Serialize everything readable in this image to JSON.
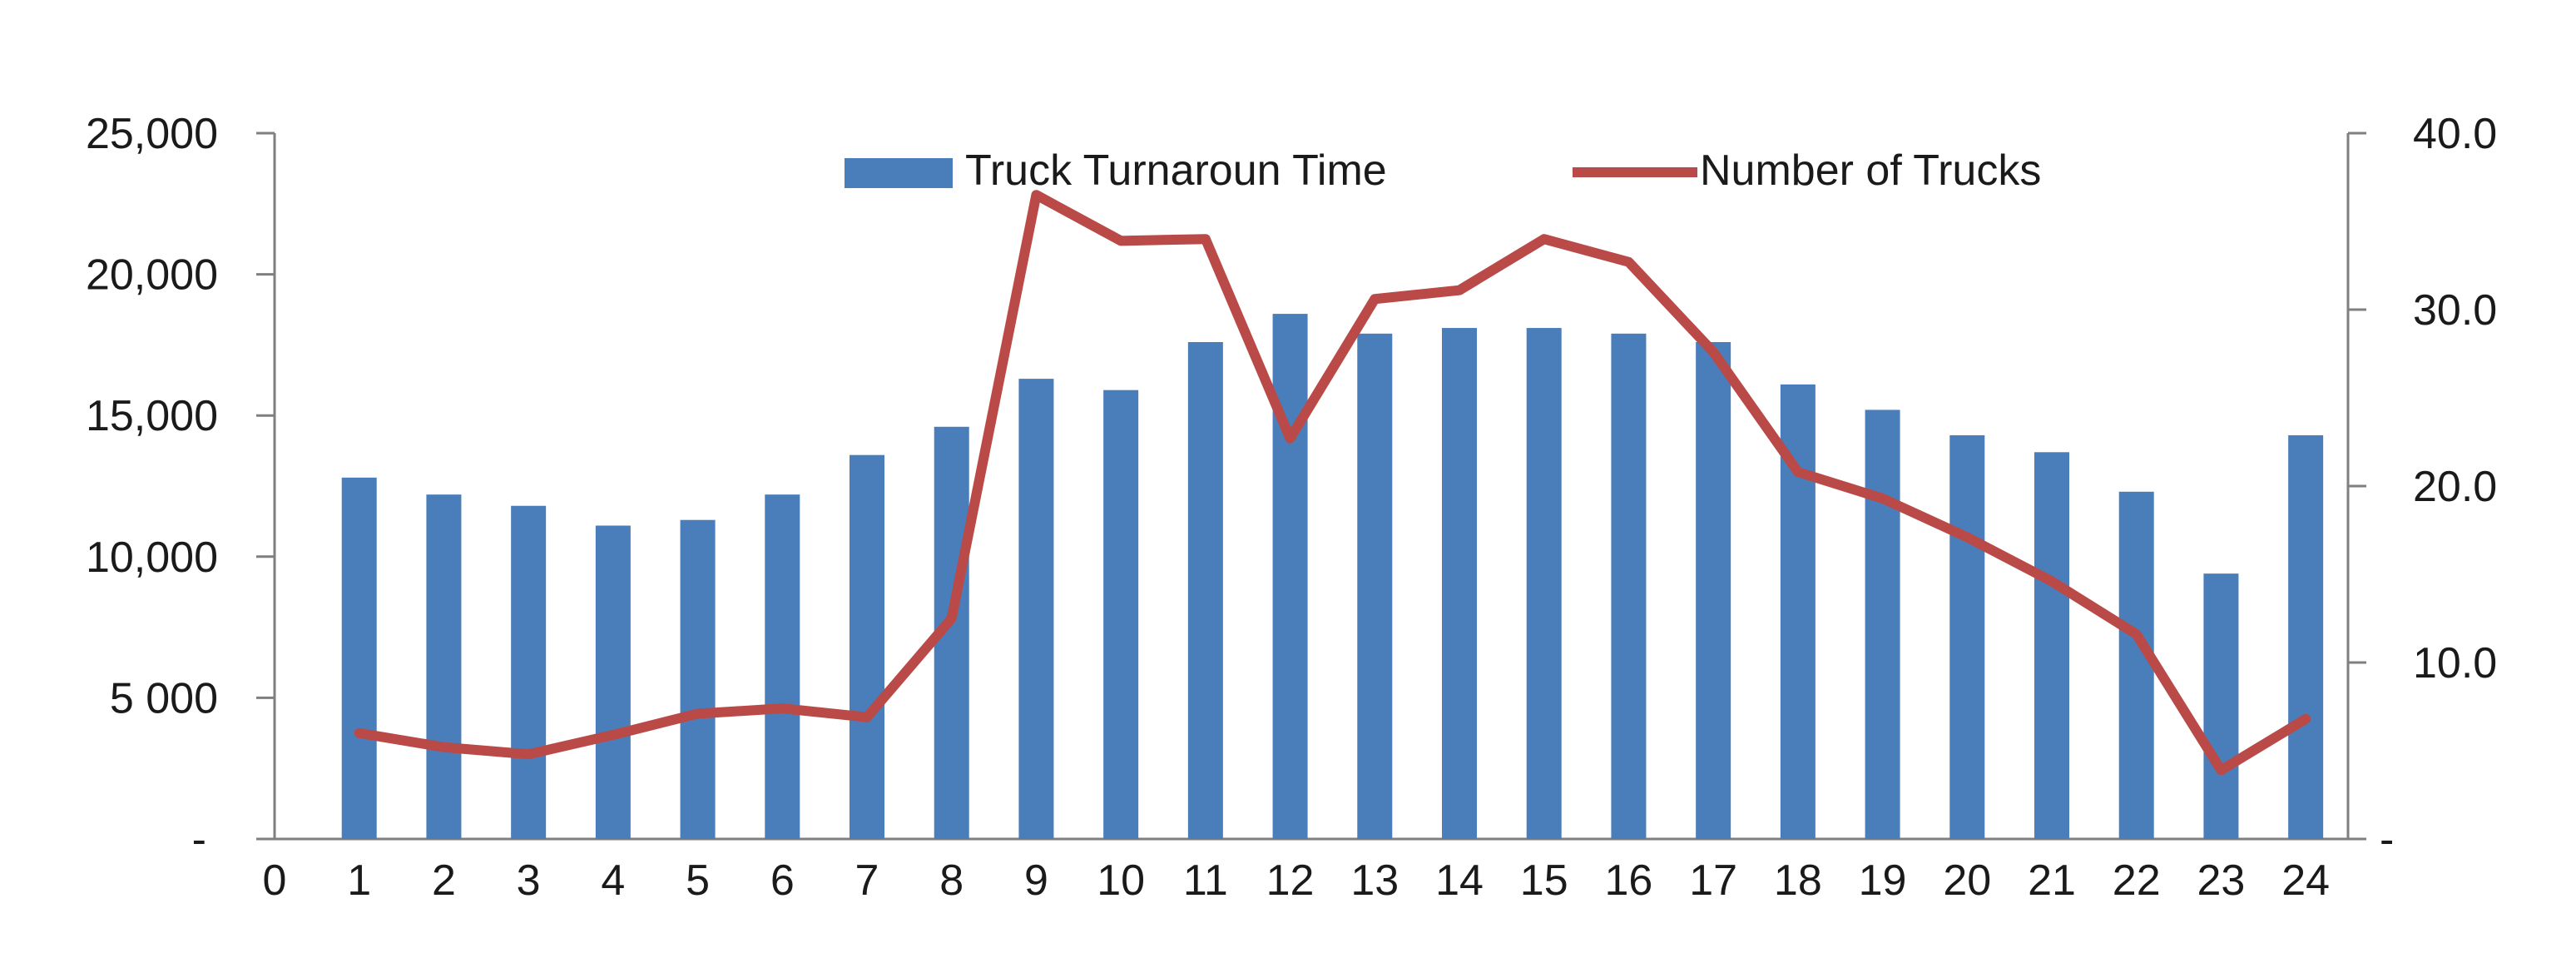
{
  "chart_data": {
    "type": "bar",
    "x_ticks": [
      "0",
      "1",
      "2",
      "3",
      "4",
      "5",
      "6",
      "7",
      "8",
      "9",
      "10",
      "11",
      "12",
      "13",
      "14",
      "15",
      "16",
      "17",
      "18",
      "19",
      "20",
      "21",
      "22",
      "23",
      "24"
    ],
    "y_left_ticks": [
      {
        "value": 0,
        "label": "-"
      },
      {
        "value": 5000,
        "label": "5 000"
      },
      {
        "value": 10000,
        "label": "10,000"
      },
      {
        "value": 15000,
        "label": "15,000"
      },
      {
        "value": 20000,
        "label": "20,000"
      },
      {
        "value": 25000,
        "label": "25,000"
      }
    ],
    "y_right_ticks": [
      {
        "value": 0,
        "label": "-"
      },
      {
        "value": 10,
        "label": "10.0"
      },
      {
        "value": 20,
        "label": "20.0"
      },
      {
        "value": 30,
        "label": "30.0"
      },
      {
        "value": 40,
        "label": "40.0"
      }
    ],
    "ylim_left": [
      0,
      25000
    ],
    "ylim_right": [
      0,
      40
    ],
    "xlim": [
      0,
      24.5
    ],
    "legend_position": "top-center",
    "series": [
      {
        "name": "Truck Turnaroun Time",
        "type": "bar",
        "axis": "left",
        "color": "#4a7ebb",
        "x": [
          1,
          2,
          3,
          4,
          5,
          6,
          7,
          8,
          9,
          10,
          11,
          12,
          13,
          14,
          15,
          16,
          17,
          18,
          19,
          20,
          21,
          22,
          23,
          24
        ],
        "values": [
          12800,
          12200,
          11800,
          11100,
          11300,
          12200,
          13600,
          14600,
          16300,
          15900,
          17600,
          18600,
          17900,
          18100,
          18100,
          17900,
          17600,
          16100,
          15200,
          14300,
          13700,
          12300,
          9400,
          14300
        ]
      },
      {
        "name": "Number of Trucks",
        "type": "line",
        "axis": "right",
        "color": "#b94a48",
        "x": [
          1,
          2,
          3,
          4,
          5,
          6,
          7,
          8,
          9,
          10,
          11,
          12,
          13,
          14,
          15,
          16,
          17,
          18,
          19,
          20,
          21,
          22,
          23,
          24
        ],
        "values": [
          6.0,
          5.2,
          4.8,
          5.9,
          7.1,
          7.4,
          6.9,
          12.5,
          36.5,
          33.9,
          34.0,
          22.7,
          30.6,
          31.1,
          34.0,
          32.7,
          27.6,
          20.8,
          19.3,
          17.1,
          14.6,
          11.6,
          3.9,
          6.8
        ]
      }
    ]
  }
}
